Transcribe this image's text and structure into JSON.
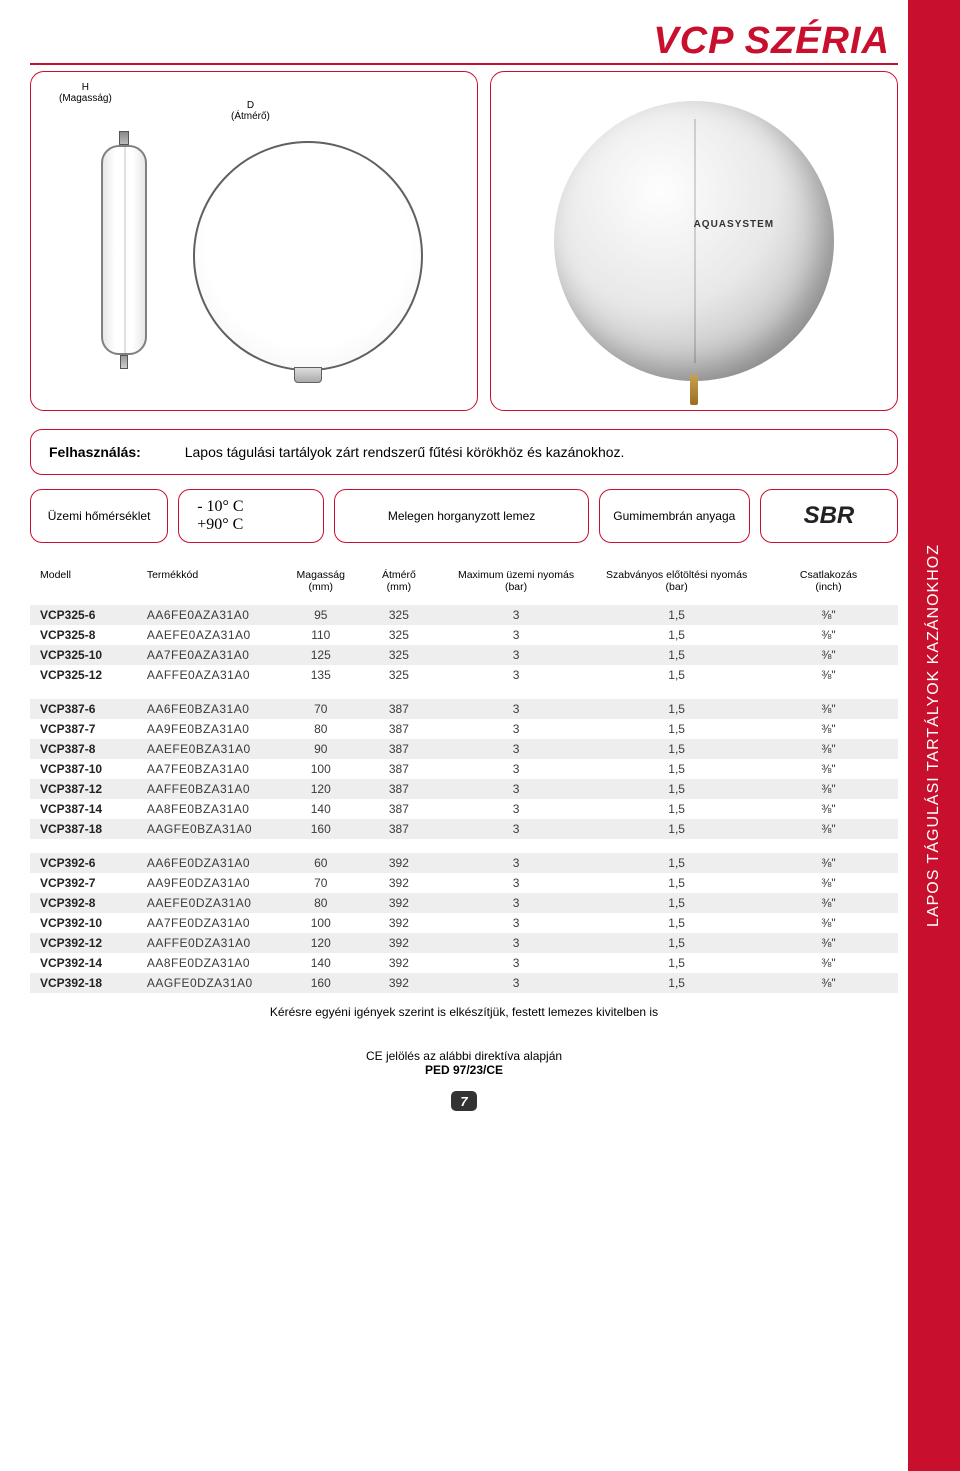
{
  "header": {
    "title": "VCP SZÉRIA"
  },
  "diagram": {
    "label_h_line1": "H",
    "label_h_line2": "(Magasság)",
    "label_d_line1": "D",
    "label_d_line2": "(Átmérő)",
    "photo_brand": "AQUASYSTEM"
  },
  "usage": {
    "label": "Felhasználás:",
    "text": "Lapos tágulási tartályok zárt rendszerű fűtési körökhöz és kazánokhoz."
  },
  "specs": {
    "temp_label": "Üzemi hőmérséklet",
    "temp_min": "- 10° C",
    "temp_max": "+90° C",
    "sheet": "Melegen horganyzott lemez",
    "membrane": "Gumimembrán anyaga",
    "sbr": "SBR"
  },
  "table": {
    "columns": [
      {
        "key": "model",
        "label_l1": "Modell",
        "label_l2": "",
        "align": "left",
        "width": "13%"
      },
      {
        "key": "code",
        "label_l1": "Termékkód",
        "label_l2": "",
        "align": "left",
        "width": "16%"
      },
      {
        "key": "height",
        "label_l1": "Magasság",
        "label_l2": "(mm)",
        "align": "center",
        "width": "9%"
      },
      {
        "key": "dia",
        "label_l1": "Átmérő",
        "label_l2": "(mm)",
        "align": "center",
        "width": "9%"
      },
      {
        "key": "maxp",
        "label_l1": "Maximum üzemi nyomás",
        "label_l2": "(bar)",
        "align": "center",
        "width": "18%"
      },
      {
        "key": "prep",
        "label_l1": "Szabványos előtöltési nyomás",
        "label_l2": "(bar)",
        "align": "center",
        "width": "19%"
      },
      {
        "key": "conn",
        "label_l1": "Csatlakozás",
        "label_l2": "(inch)",
        "align": "center",
        "width": "16%"
      }
    ],
    "groups": [
      [
        {
          "model": "VCP325-6",
          "code": "AA6FE0AZA31A0",
          "height": "95",
          "dia": "325",
          "maxp": "3",
          "prep": "1,5",
          "conn": "⅜\""
        },
        {
          "model": "VCP325-8",
          "code": "AAEFE0AZA31A0",
          "height": "110",
          "dia": "325",
          "maxp": "3",
          "prep": "1,5",
          "conn": "⅜\""
        },
        {
          "model": "VCP325-10",
          "code": "AA7FE0AZA31A0",
          "height": "125",
          "dia": "325",
          "maxp": "3",
          "prep": "1,5",
          "conn": "⅜\""
        },
        {
          "model": "VCP325-12",
          "code": "AAFFE0AZA31A0",
          "height": "135",
          "dia": "325",
          "maxp": "3",
          "prep": "1,5",
          "conn": "⅜\""
        }
      ],
      [
        {
          "model": "VCP387-6",
          "code": "AA6FE0BZA31A0",
          "height": "70",
          "dia": "387",
          "maxp": "3",
          "prep": "1,5",
          "conn": "⅜\""
        },
        {
          "model": "VCP387-7",
          "code": "AA9FE0BZA31A0",
          "height": "80",
          "dia": "387",
          "maxp": "3",
          "prep": "1,5",
          "conn": "⅜\""
        },
        {
          "model": "VCP387-8",
          "code": "AAEFE0BZA31A0",
          "height": "90",
          "dia": "387",
          "maxp": "3",
          "prep": "1,5",
          "conn": "⅜\""
        },
        {
          "model": "VCP387-10",
          "code": "AA7FE0BZA31A0",
          "height": "100",
          "dia": "387",
          "maxp": "3",
          "prep": "1,5",
          "conn": "⅜\""
        },
        {
          "model": "VCP387-12",
          "code": "AAFFE0BZA31A0",
          "height": "120",
          "dia": "387",
          "maxp": "3",
          "prep": "1,5",
          "conn": "⅜\""
        },
        {
          "model": "VCP387-14",
          "code": "AA8FE0BZA31A0",
          "height": "140",
          "dia": "387",
          "maxp": "3",
          "prep": "1,5",
          "conn": "⅜\""
        },
        {
          "model": "VCP387-18",
          "code": "AAGFE0BZA31A0",
          "height": "160",
          "dia": "387",
          "maxp": "3",
          "prep": "1,5",
          "conn": "⅜\""
        }
      ],
      [
        {
          "model": "VCP392-6",
          "code": "AA6FE0DZA31A0",
          "height": "60",
          "dia": "392",
          "maxp": "3",
          "prep": "1,5",
          "conn": "⅜\""
        },
        {
          "model": "VCP392-7",
          "code": "AA9FE0DZA31A0",
          "height": "70",
          "dia": "392",
          "maxp": "3",
          "prep": "1,5",
          "conn": "⅜\""
        },
        {
          "model": "VCP392-8",
          "code": "AAEFE0DZA31A0",
          "height": "80",
          "dia": "392",
          "maxp": "3",
          "prep": "1,5",
          "conn": "⅜\""
        },
        {
          "model": "VCP392-10",
          "code": "AA7FE0DZA31A0",
          "height": "100",
          "dia": "392",
          "maxp": "3",
          "prep": "1,5",
          "conn": "⅜\""
        },
        {
          "model": "VCP392-12",
          "code": "AAFFE0DZA31A0",
          "height": "120",
          "dia": "392",
          "maxp": "3",
          "prep": "1,5",
          "conn": "⅜\""
        },
        {
          "model": "VCP392-14",
          "code": "AA8FE0DZA31A0",
          "height": "140",
          "dia": "392",
          "maxp": "3",
          "prep": "1,5",
          "conn": "⅜\""
        },
        {
          "model": "VCP392-18",
          "code": "AAGFE0DZA31A0",
          "height": "160",
          "dia": "392",
          "maxp": "3",
          "prep": "1,5",
          "conn": "⅜\""
        }
      ]
    ]
  },
  "note": "Kérésre egyéni igények szerint is elkészítjük, festett lemezes kivitelben is",
  "ce": {
    "line1": "CE jelölés az alábbi direktíva alapján",
    "line2": "PED 97/23/CE"
  },
  "pagenum": "7",
  "stripe": "LAPOS TÁGULÁSI TARTÁLYOK KAZÁNOKHOZ",
  "colors": {
    "accent": "#c8102e",
    "row_odd": "#eeeeee",
    "page_bg": "#ffffff"
  }
}
